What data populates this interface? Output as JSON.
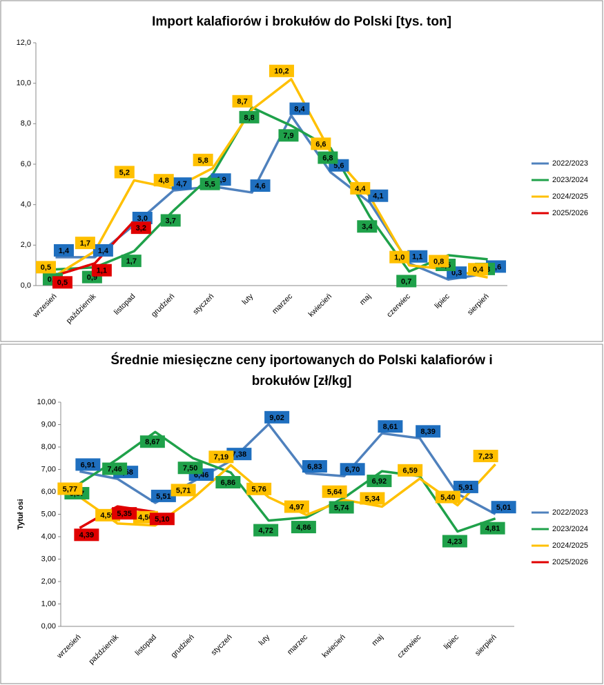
{
  "chart_data": [
    {
      "type": "line",
      "title": "Import kalafiorów i brokułów do Polski [tys. ton]",
      "categories": [
        "wrzesień",
        "październik",
        "listopad",
        "grudzień",
        "styczeń",
        "luty",
        "marzec",
        "kwiecień",
        "maj",
        "czerwiec",
        "lipiec",
        "sierpień"
      ],
      "ylim": [
        0,
        12
      ],
      "yticks": [
        {
          "value": 0,
          "label": "0,0"
        },
        {
          "value": 2,
          "label": "2,0"
        },
        {
          "value": 4,
          "label": "4,0"
        },
        {
          "value": 6,
          "label": "6,0"
        },
        {
          "value": 8,
          "label": "8,0"
        },
        {
          "value": 10,
          "label": "10,0"
        },
        {
          "value": 12,
          "label": "12,0"
        }
      ],
      "legend": "right",
      "series": [
        {
          "name": "2022/2023",
          "color": "#4f81bd",
          "values": [
            1.4,
            1.4,
            3.0,
            4.7,
            4.9,
            4.6,
            8.4,
            5.6,
            4.1,
            1.1,
            0.3,
            0.6
          ],
          "value_labels": [
            "1,4",
            "1,4",
            "3,0",
            "4,7",
            "4,9",
            "4,6",
            "8,4",
            "5,6",
            "4,1",
            "1,1",
            "0,3",
            "0,6"
          ]
        },
        {
          "name": "2023/2024",
          "color": "#1fa14a",
          "values": [
            0.8,
            0.9,
            1.7,
            3.7,
            5.5,
            8.8,
            7.9,
            6.8,
            3.4,
            0.7,
            1.5,
            1.3
          ],
          "value_labels": [
            "0,8",
            "0,9",
            "1,7",
            "3,7",
            "5,5",
            "8,8",
            "7,9",
            "6,8",
            "3,4",
            "0,7",
            "1,5",
            "1,3"
          ]
        },
        {
          "name": "2024/2025",
          "color": "#ffc000",
          "values": [
            0.5,
            1.7,
            5.2,
            4.8,
            5.8,
            8.7,
            10.2,
            6.6,
            4.4,
            1.0,
            0.8,
            0.4
          ],
          "value_labels": [
            "0,5",
            "1,7",
            "5,2",
            "4,8",
            "5,8",
            "8,7",
            "10,2",
            "6,6",
            "4,4",
            "1,0",
            "0,8",
            "0,4"
          ]
        },
        {
          "name": "2025/2026",
          "color": "#e00000",
          "values": [
            0.5,
            1.1,
            3.2,
            null,
            null,
            null,
            null,
            null,
            null,
            null,
            null,
            null
          ],
          "value_labels": [
            "0,5",
            "1,1",
            "3,2",
            null,
            null,
            null,
            null,
            null,
            null,
            null,
            null,
            null
          ]
        }
      ]
    },
    {
      "type": "line",
      "title": "Średnie miesięczne ceny iportowanych do Polski kalafiorów i brokułów [zł/kg]",
      "y_label": "Tytuł osi",
      "categories": [
        "wrzesień",
        "październik",
        "listopad",
        "grudzień",
        "styczeń",
        "luty",
        "marzec",
        "kwiecień",
        "maj",
        "czerwiec",
        "lipiec",
        "sierpień"
      ],
      "ylim": [
        0,
        10
      ],
      "yticks": [
        {
          "value": 0,
          "label": "0,00"
        },
        {
          "value": 1,
          "label": "1,00"
        },
        {
          "value": 2,
          "label": "2,00"
        },
        {
          "value": 3,
          "label": "3,00"
        },
        {
          "value": 4,
          "label": "4,00"
        },
        {
          "value": 5,
          "label": "5,00"
        },
        {
          "value": 6,
          "label": "6,00"
        },
        {
          "value": 7,
          "label": "7,00"
        },
        {
          "value": 8,
          "label": "8,00"
        },
        {
          "value": 9,
          "label": "9,00"
        },
        {
          "value": 10,
          "label": "10,00"
        }
      ],
      "legend": "right",
      "series": [
        {
          "name": "2022/2023",
          "color": "#4f81bd",
          "values": [
            6.91,
            6.58,
            5.51,
            6.46,
            7.38,
            9.02,
            6.83,
            6.7,
            8.61,
            8.39,
            5.91,
            5.01
          ],
          "value_labels": [
            "6,91",
            "6,58",
            "5,51",
            "6,46",
            "7,38",
            "9,02",
            "6,83",
            "6,70",
            "8,61",
            "8,39",
            "5,91",
            "5,01"
          ]
        },
        {
          "name": "2023/2024",
          "color": "#1fa14a",
          "values": [
            6.37,
            7.46,
            8.67,
            7.5,
            6.86,
            4.72,
            4.86,
            5.74,
            6.92,
            6.7,
            4.23,
            4.81
          ],
          "value_labels": [
            "6,37",
            "7,46",
            "8,67",
            "7,50",
            "6,86",
            "4,72",
            "4,86",
            "5,74",
            "6,92",
            null,
            "4,23",
            "4,81"
          ]
        },
        {
          "name": "2024/2025",
          "color": "#ffc000",
          "values": [
            5.77,
            4.59,
            4.5,
            5.71,
            7.19,
            5.76,
            4.97,
            5.64,
            5.34,
            6.59,
            5.4,
            7.23
          ],
          "value_labels": [
            "5,77",
            "4,59",
            "4,50",
            "5,71",
            "7,19",
            "5,76",
            "4,97",
            "5,64",
            "5,34",
            "6,59",
            "5,40",
            "7,23"
          ]
        },
        {
          "name": "2025/2026",
          "color": "#e00000",
          "values": [
            4.39,
            5.35,
            5.1,
            null,
            null,
            null,
            null,
            null,
            null,
            null,
            null,
            null
          ],
          "value_labels": [
            "4,39",
            "5,35",
            "5,10",
            null,
            null,
            null,
            null,
            null,
            null,
            null,
            null,
            null
          ]
        }
      ]
    }
  ]
}
